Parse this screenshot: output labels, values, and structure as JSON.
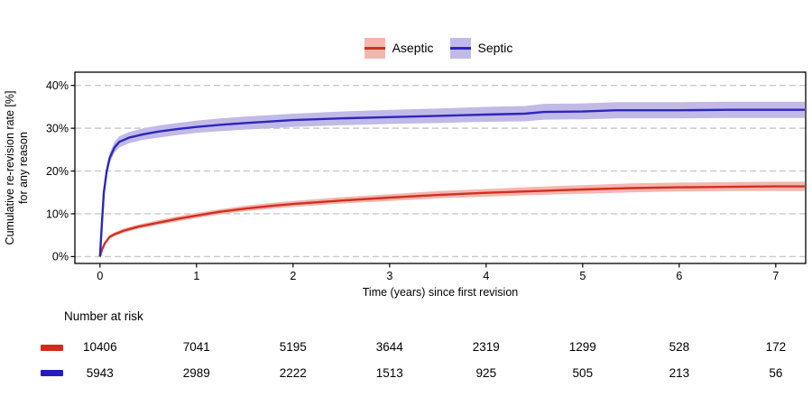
{
  "colors": {
    "aseptic_line": "#d2301f",
    "aseptic_band": "#f3b7b0",
    "septic_line": "#2d26bd",
    "septic_band": "#c1bae7",
    "grid": "#c9c9c9",
    "panel_border": "#000000",
    "axis_text": "#000000",
    "risk_marker_aseptic": "#d42a1c",
    "risk_marker_septic": "#241bc4"
  },
  "legend": {
    "items": [
      {
        "label": "Aseptic",
        "line_color": "#d2301f",
        "band_color": "#f3b7b0"
      },
      {
        "label": "Septic",
        "line_color": "#2d26bd",
        "band_color": "#c1bae7"
      }
    ]
  },
  "chart_data": {
    "type": "line",
    "title": "",
    "xlabel": "Time (years) since first revision",
    "ylabel_line1": "Cumulative re-revision rate [%]",
    "ylabel_line2": "for any reason",
    "xlim": [
      -0.26,
      7.31
    ],
    "ylim": [
      -1.6,
      43.1
    ],
    "xticks": [
      0,
      1,
      2,
      3,
      4,
      5,
      6,
      7
    ],
    "yticks": [
      0,
      10,
      20,
      30,
      40
    ],
    "ytick_suffix": "%",
    "grid": "horizontal dashed gridlines at each y tick",
    "legend_position": "top center",
    "series": [
      {
        "name": "Aseptic",
        "color": "#d2301f",
        "band_color": "#f3b7b0",
        "points_format": [
          "t_years",
          "value_pct",
          "ci_low_pct",
          "ci_high_pct"
        ],
        "points": [
          [
            0,
            0,
            0,
            0
          ],
          [
            0.02,
            1.6,
            1.4,
            1.8
          ],
          [
            0.05,
            3.1,
            2.8,
            3.4
          ],
          [
            0.1,
            4.6,
            4.2,
            5.0
          ],
          [
            0.15,
            5.2,
            4.8,
            5.7
          ],
          [
            0.25,
            6.1,
            5.6,
            6.6
          ],
          [
            0.4,
            7.0,
            6.5,
            7.5
          ],
          [
            0.6,
            7.9,
            7.4,
            8.5
          ],
          [
            0.8,
            8.8,
            8.2,
            9.4
          ],
          [
            1.0,
            9.6,
            9.0,
            10.2
          ],
          [
            1.25,
            10.5,
            9.9,
            11.1
          ],
          [
            1.5,
            11.2,
            10.6,
            11.9
          ],
          [
            1.75,
            11.8,
            11.1,
            12.5
          ],
          [
            2.0,
            12.3,
            11.6,
            13.0
          ],
          [
            2.5,
            13.1,
            12.4,
            13.9
          ],
          [
            3.0,
            13.8,
            13.0,
            14.6
          ],
          [
            3.5,
            14.4,
            13.6,
            15.3
          ],
          [
            4.0,
            14.9,
            14.0,
            15.8
          ],
          [
            4.5,
            15.3,
            14.4,
            16.3
          ],
          [
            5.0,
            15.7,
            14.7,
            16.7
          ],
          [
            5.5,
            16.0,
            15.0,
            17.1
          ],
          [
            6.0,
            16.2,
            15.2,
            17.3
          ],
          [
            6.5,
            16.3,
            15.3,
            17.4
          ],
          [
            7.0,
            16.4,
            15.3,
            17.5
          ],
          [
            7.3,
            16.4,
            15.3,
            17.5
          ]
        ]
      },
      {
        "name": "Septic",
        "color": "#2d26bd",
        "band_color": "#c1bae7",
        "points_format": [
          "t_years",
          "value_pct",
          "ci_low_pct",
          "ci_high_pct"
        ],
        "points": [
          [
            0,
            0,
            0,
            0
          ],
          [
            0.01,
            4,
            3.4,
            4.6
          ],
          [
            0.02,
            8,
            7.2,
            8.8
          ],
          [
            0.04,
            15,
            14,
            16
          ],
          [
            0.07,
            20,
            18.9,
            21.1
          ],
          [
            0.1,
            23,
            21.8,
            24.2
          ],
          [
            0.15,
            25.5,
            24.3,
            26.8
          ],
          [
            0.2,
            26.8,
            25.5,
            28.1
          ],
          [
            0.3,
            27.8,
            26.5,
            29.1
          ],
          [
            0.45,
            28.6,
            27.3,
            30.0
          ],
          [
            0.6,
            29.2,
            27.8,
            30.6
          ],
          [
            0.8,
            29.8,
            28.4,
            31.2
          ],
          [
            1.0,
            30.3,
            28.9,
            31.8
          ],
          [
            1.25,
            30.8,
            29.3,
            32.3
          ],
          [
            1.5,
            31.2,
            29.7,
            32.7
          ],
          [
            2.0,
            31.9,
            30.3,
            33.4
          ],
          [
            2.5,
            32.3,
            30.7,
            33.9
          ],
          [
            3.0,
            32.6,
            31.0,
            34.3
          ],
          [
            3.5,
            32.9,
            31.2,
            34.6
          ],
          [
            4.0,
            33.2,
            31.5,
            35.0
          ],
          [
            4.4,
            33.4,
            31.6,
            35.2
          ],
          [
            4.6,
            33.8,
            32.0,
            35.7
          ],
          [
            5.0,
            33.9,
            32.1,
            35.8
          ],
          [
            5.35,
            34.2,
            32.3,
            36.1
          ],
          [
            6.0,
            34.2,
            32.3,
            36.1
          ],
          [
            6.5,
            34.3,
            32.4,
            36.2
          ],
          [
            7.0,
            34.3,
            32.4,
            36.2
          ],
          [
            7.3,
            34.3,
            32.4,
            36.2
          ]
        ]
      }
    ]
  },
  "risk_table": {
    "title": "Number at risk",
    "time_points": [
      0,
      1,
      2,
      3,
      4,
      5,
      6,
      7
    ],
    "rows": [
      {
        "group": "Aseptic",
        "color": "#d42a1c",
        "counts": [
          "10406",
          "7041",
          "5195",
          "3644",
          "2319",
          "1299",
          "528",
          "172"
        ]
      },
      {
        "group": "Septic",
        "color": "#241bc4",
        "counts": [
          "5943",
          "2989",
          "2222",
          "1513",
          "925",
          "505",
          "213",
          "56"
        ]
      }
    ]
  }
}
